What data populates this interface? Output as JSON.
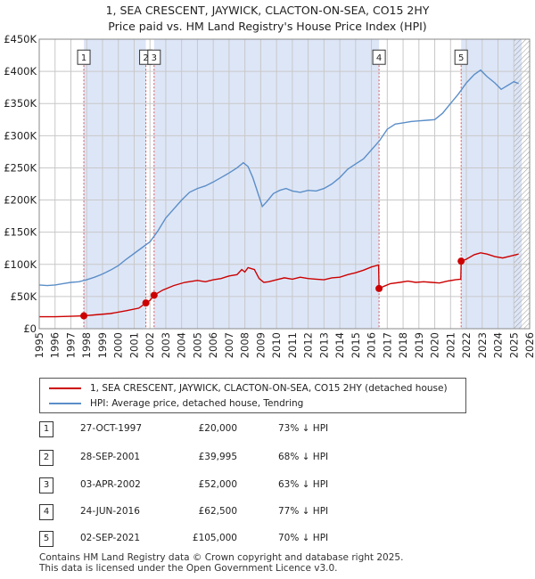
{
  "title_line1": "1, SEA CRESCENT, JAYWICK, CLACTON-ON-SEA, CO15 2HY",
  "title_line2": "Price paid vs. HM Land Registry's House Price Index (HPI)",
  "legend": {
    "property_label": "1, SEA CRESCENT, JAYWICK, CLACTON-ON-SEA, CO15 2HY (detached house)",
    "hpi_label": "HPI: Average price, detached house, Tendring"
  },
  "colors": {
    "property_line": "#cc0000",
    "hpi_line": "#5b8ec8",
    "sale_band": "#dde6f7",
    "marker_line": "#e05050",
    "grid": "#c8c8c8",
    "hatch": "#9a9a9a"
  },
  "transactions": [
    {
      "num": "1",
      "date": "27-OCT-1997",
      "price": "£20,000",
      "hpi": "73% ↓ HPI"
    },
    {
      "num": "2",
      "date": "28-SEP-2001",
      "price": "£39,995",
      "hpi": "68% ↓ HPI"
    },
    {
      "num": "3",
      "date": "03-APR-2002",
      "price": "£52,000",
      "hpi": "63% ↓ HPI"
    },
    {
      "num": "4",
      "date": "24-JUN-2016",
      "price": "£62,500",
      "hpi": "77% ↓ HPI"
    },
    {
      "num": "5",
      "date": "02-SEP-2021",
      "price": "£105,000",
      "hpi": "70% ↓ HPI"
    }
  ],
  "footer_line1": "Contains HM Land Registry data © Crown copyright and database right 2025.",
  "footer_line2": "This data is licensed under the Open Government Licence v3.0.",
  "chart_data": {
    "type": "line",
    "title": "1, SEA CRESCENT, JAYWICK, CLACTON-ON-SEA, CO15 2HY",
    "subtitle": "Price paid vs. HM Land Registry's House Price Index (HPI)",
    "xlim": [
      1995,
      2026
    ],
    "ylim": [
      0,
      450000
    ],
    "x_ticks": [
      1995,
      1996,
      1997,
      1998,
      1999,
      2000,
      2001,
      2002,
      2003,
      2004,
      2005,
      2006,
      2007,
      2008,
      2009,
      2010,
      2011,
      2012,
      2013,
      2014,
      2015,
      2016,
      2017,
      2018,
      2019,
      2020,
      2021,
      2022,
      2023,
      2024,
      2025,
      2026
    ],
    "y_ticks": [
      {
        "value": 0,
        "label": "£0"
      },
      {
        "value": 50000,
        "label": "£50K"
      },
      {
        "value": 100000,
        "label": "£100K"
      },
      {
        "value": 150000,
        "label": "£150K"
      },
      {
        "value": 200000,
        "label": "£200K"
      },
      {
        "value": 250000,
        "label": "£250K"
      },
      {
        "value": 300000,
        "label": "£300K"
      },
      {
        "value": 350000,
        "label": "£350K"
      },
      {
        "value": 400000,
        "label": "£400K"
      },
      {
        "value": 450000,
        "label": "£450K"
      }
    ],
    "grid": true,
    "legend_position": "below chart",
    "sale_periods": [
      [
        1997.82,
        2001.74
      ],
      [
        2002.26,
        2016.48
      ],
      [
        2021.67,
        2025.5
      ]
    ],
    "hatched_region": [
      2025.0,
      2026.0
    ],
    "sales": [
      {
        "num": "1",
        "x": 1997.82,
        "y": 20000,
        "label_y": 422000
      },
      {
        "num": "2",
        "x": 2001.74,
        "y": 39995,
        "label_y": 422000
      },
      {
        "num": "3",
        "x": 2002.26,
        "y": 52000,
        "label_y": 422000
      },
      {
        "num": "4",
        "x": 2016.48,
        "y": 62500,
        "label_y": 422000
      },
      {
        "num": "5",
        "x": 2021.67,
        "y": 105000,
        "label_y": 422000
      }
    ],
    "series": [
      {
        "name": "1, SEA CRESCENT, JAYWICK, CLACTON-ON-SEA, CO15 2HY (detached house)",
        "points": [
          [
            1995.0,
            18500
          ],
          [
            1996.0,
            18600
          ],
          [
            1997.0,
            19200
          ],
          [
            1997.82,
            20000
          ],
          [
            1998.5,
            21500
          ],
          [
            1999.5,
            23500
          ],
          [
            2000.5,
            28000
          ],
          [
            2001.3,
            32000
          ],
          [
            2001.74,
            39995
          ],
          [
            2002.0,
            44000
          ],
          [
            2002.26,
            52000
          ],
          [
            2002.8,
            60000
          ],
          [
            2003.5,
            67000
          ],
          [
            2004.2,
            72000
          ],
          [
            2005.0,
            75000
          ],
          [
            2005.5,
            73000
          ],
          [
            2006.0,
            76000
          ],
          [
            2006.5,
            78000
          ],
          [
            2007.0,
            82000
          ],
          [
            2007.5,
            84000
          ],
          [
            2007.8,
            92000
          ],
          [
            2008.0,
            88000
          ],
          [
            2008.2,
            95000
          ],
          [
            2008.6,
            92000
          ],
          [
            2008.9,
            78000
          ],
          [
            2009.2,
            72000
          ],
          [
            2009.5,
            73000
          ],
          [
            2010.0,
            76000
          ],
          [
            2010.5,
            79000
          ],
          [
            2011.0,
            77000
          ],
          [
            2011.5,
            80000
          ],
          [
            2012.0,
            78000
          ],
          [
            2012.5,
            77000
          ],
          [
            2013.0,
            76000
          ],
          [
            2013.5,
            79000
          ],
          [
            2014.0,
            80000
          ],
          [
            2014.5,
            84000
          ],
          [
            2015.0,
            87000
          ],
          [
            2015.5,
            91000
          ],
          [
            2016.0,
            96000
          ],
          [
            2016.45,
            99000
          ],
          [
            2016.48,
            62500
          ],
          [
            2016.8,
            66000
          ],
          [
            2017.2,
            70000
          ],
          [
            2017.8,
            72000
          ],
          [
            2018.3,
            74000
          ],
          [
            2018.8,
            72000
          ],
          [
            2019.3,
            73000
          ],
          [
            2019.8,
            72000
          ],
          [
            2020.3,
            71000
          ],
          [
            2020.8,
            74000
          ],
          [
            2021.3,
            76000
          ],
          [
            2021.65,
            77000
          ],
          [
            2021.67,
            105000
          ],
          [
            2022.0,
            108000
          ],
          [
            2022.5,
            115000
          ],
          [
            2022.9,
            118000
          ],
          [
            2023.3,
            116000
          ],
          [
            2023.8,
            112000
          ],
          [
            2024.3,
            110000
          ],
          [
            2024.8,
            113000
          ],
          [
            2025.3,
            116000
          ]
        ]
      },
      {
        "name": "HPI: Average price, detached house, Tendring",
        "points": [
          [
            1995.0,
            68000
          ],
          [
            1995.5,
            67000
          ],
          [
            1996.0,
            68000
          ],
          [
            1996.5,
            70000
          ],
          [
            1997.0,
            72000
          ],
          [
            1997.5,
            73000
          ],
          [
            1998.0,
            76000
          ],
          [
            1998.5,
            80000
          ],
          [
            1999.0,
            85000
          ],
          [
            1999.5,
            91000
          ],
          [
            2000.0,
            98000
          ],
          [
            2000.5,
            108000
          ],
          [
            2001.0,
            117000
          ],
          [
            2001.5,
            126000
          ],
          [
            2002.0,
            135000
          ],
          [
            2002.5,
            152000
          ],
          [
            2003.0,
            172000
          ],
          [
            2003.5,
            186000
          ],
          [
            2004.0,
            200000
          ],
          [
            2004.5,
            212000
          ],
          [
            2005.0,
            218000
          ],
          [
            2005.5,
            222000
          ],
          [
            2006.0,
            228000
          ],
          [
            2006.5,
            235000
          ],
          [
            2007.0,
            242000
          ],
          [
            2007.5,
            250000
          ],
          [
            2007.9,
            258000
          ],
          [
            2008.2,
            252000
          ],
          [
            2008.5,
            235000
          ],
          [
            2008.9,
            205000
          ],
          [
            2009.1,
            190000
          ],
          [
            2009.4,
            198000
          ],
          [
            2009.8,
            210000
          ],
          [
            2010.2,
            215000
          ],
          [
            2010.6,
            218000
          ],
          [
            2011.0,
            214000
          ],
          [
            2011.5,
            212000
          ],
          [
            2012.0,
            215000
          ],
          [
            2012.5,
            214000
          ],
          [
            2013.0,
            218000
          ],
          [
            2013.5,
            225000
          ],
          [
            2014.0,
            235000
          ],
          [
            2014.5,
            248000
          ],
          [
            2015.0,
            256000
          ],
          [
            2015.5,
            264000
          ],
          [
            2016.0,
            278000
          ],
          [
            2016.5,
            292000
          ],
          [
            2017.0,
            310000
          ],
          [
            2017.5,
            318000
          ],
          [
            2018.0,
            320000
          ],
          [
            2018.5,
            322000
          ],
          [
            2019.0,
            323000
          ],
          [
            2019.5,
            324000
          ],
          [
            2020.0,
            325000
          ],
          [
            2020.5,
            335000
          ],
          [
            2021.0,
            350000
          ],
          [
            2021.5,
            365000
          ],
          [
            2022.0,
            382000
          ],
          [
            2022.5,
            395000
          ],
          [
            2022.9,
            402000
          ],
          [
            2023.3,
            392000
          ],
          [
            2023.8,
            382000
          ],
          [
            2024.2,
            372000
          ],
          [
            2024.6,
            378000
          ],
          [
            2025.0,
            384000
          ],
          [
            2025.3,
            381000
          ]
        ]
      }
    ]
  }
}
